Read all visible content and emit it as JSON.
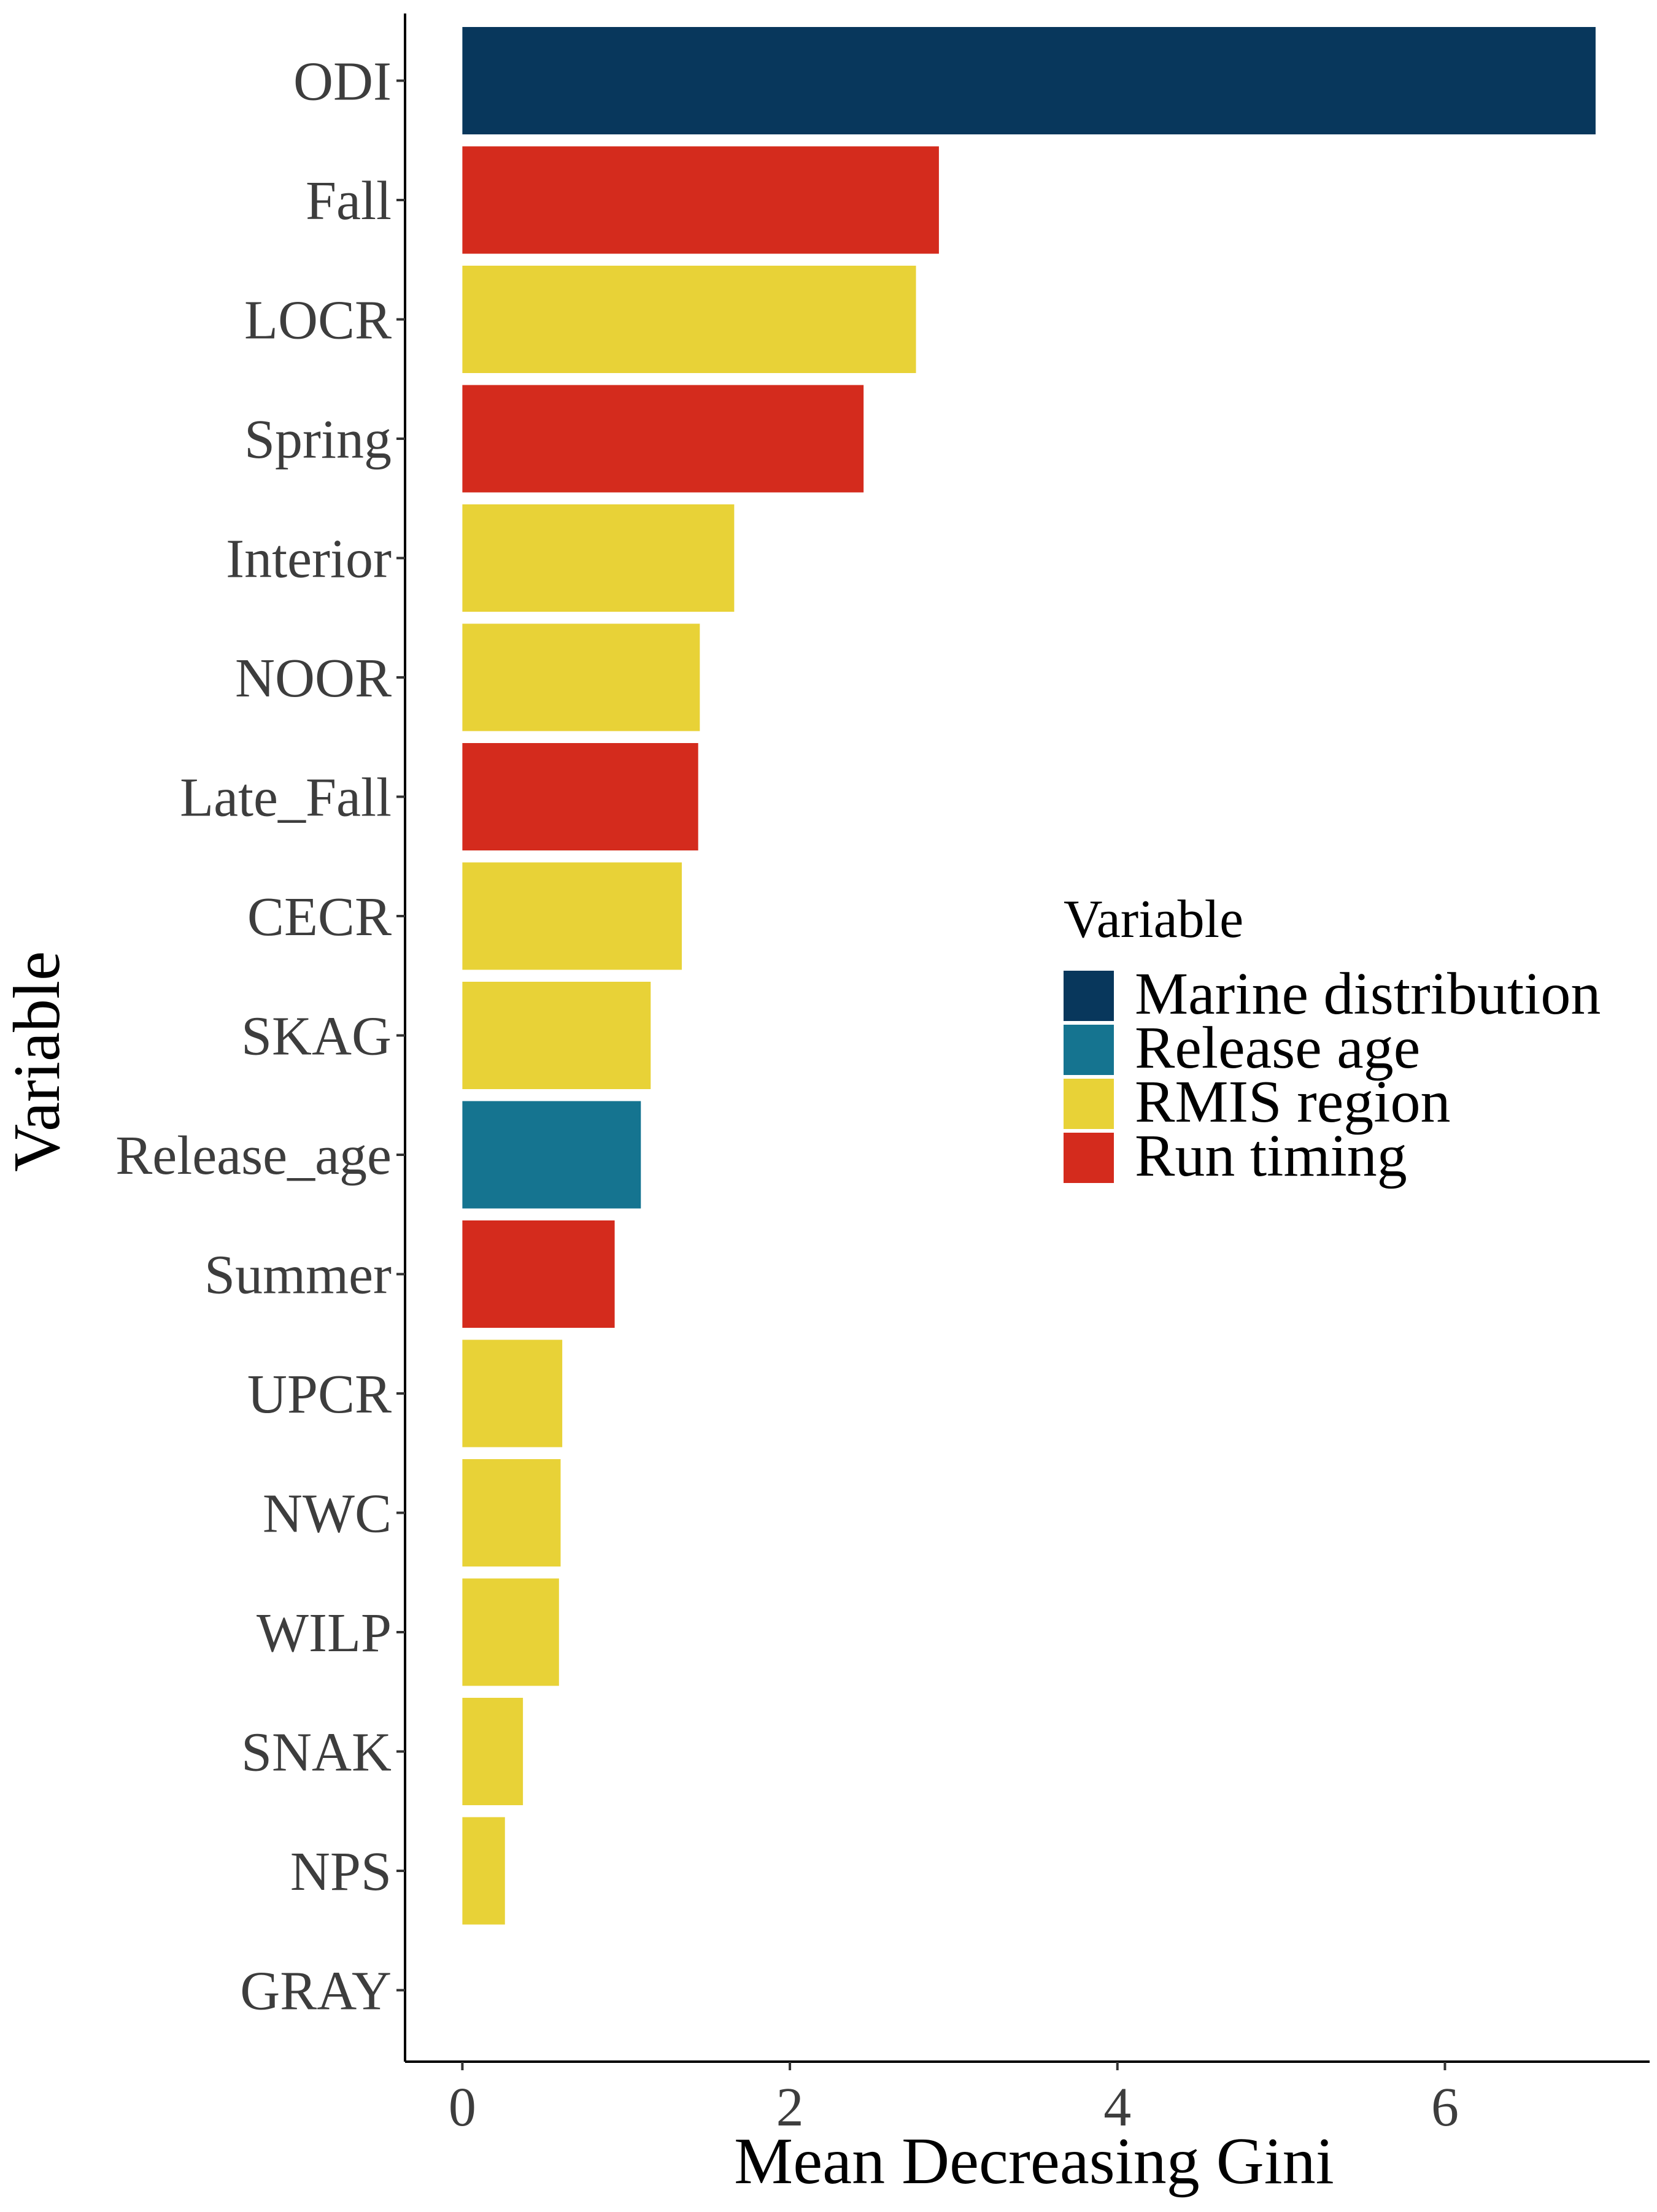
{
  "chart_data": {
    "type": "bar",
    "orientation": "horizontal",
    "xlabel": "Mean Decreasing Gini",
    "ylabel": "Variable",
    "xlim": [
      -0.35,
      7.25
    ],
    "xticks": [
      0,
      2,
      4,
      6
    ],
    "grid": false,
    "legend": {
      "title": "Variable",
      "placement": "right",
      "entries": [
        {
          "label": "Marine distribution",
          "color": "#08375c"
        },
        {
          "label": "Release age",
          "color": "#157490"
        },
        {
          "label": "RMIS region",
          "color": "#e8d237"
        },
        {
          "label": "Run timing",
          "color": "#d42b1d"
        }
      ]
    },
    "categories": [
      "ODI",
      "Fall",
      "LOCR",
      "Spring",
      "Interior",
      "NOOR",
      "Late_Fall",
      "CECR",
      "SKAG",
      "Release_age",
      "Summer",
      "UPCR",
      "NWC",
      "WILP",
      "SNAK",
      "NPS",
      "GRAY"
    ],
    "values": [
      6.92,
      2.91,
      2.77,
      2.45,
      1.66,
      1.45,
      1.44,
      1.34,
      1.15,
      1.09,
      0.93,
      0.61,
      0.6,
      0.59,
      0.37,
      0.26,
      0.0
    ],
    "groups": [
      "Marine distribution",
      "Run timing",
      "RMIS region",
      "Run timing",
      "RMIS region",
      "RMIS region",
      "Run timing",
      "RMIS region",
      "RMIS region",
      "Release age",
      "Run timing",
      "RMIS region",
      "RMIS region",
      "RMIS region",
      "RMIS region",
      "RMIS region",
      "RMIS region"
    ]
  }
}
